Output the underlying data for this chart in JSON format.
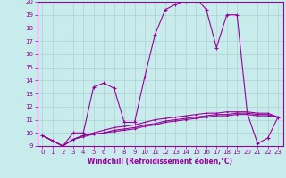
{
  "title": "",
  "xlabel": "Windchill (Refroidissement éolien,°C)",
  "background_color": "#c8ecec",
  "grid_color": "#b0d0d0",
  "line_color": "#990099",
  "x": [
    0,
    1,
    2,
    3,
    4,
    5,
    6,
    7,
    8,
    9,
    10,
    11,
    12,
    13,
    14,
    15,
    16,
    17,
    18,
    19,
    20,
    21,
    22,
    23
  ],
  "y_main": [
    9.8,
    9.4,
    9.0,
    10.0,
    10.0,
    13.5,
    13.8,
    13.4,
    10.8,
    10.8,
    14.3,
    17.5,
    19.4,
    19.8,
    20.1,
    20.3,
    19.4,
    16.5,
    19.0,
    19.0,
    11.5,
    9.2,
    9.6,
    11.2
  ],
  "y_line2": [
    9.8,
    9.4,
    9.0,
    9.5,
    9.8,
    10.0,
    10.2,
    10.4,
    10.5,
    10.6,
    10.8,
    11.0,
    11.1,
    11.2,
    11.3,
    11.4,
    11.5,
    11.5,
    11.6,
    11.6,
    11.6,
    11.5,
    11.5,
    11.2
  ],
  "y_line3": [
    9.8,
    9.4,
    9.0,
    9.5,
    9.8,
    9.9,
    10.0,
    10.2,
    10.3,
    10.4,
    10.6,
    10.7,
    10.9,
    11.0,
    11.1,
    11.2,
    11.3,
    11.4,
    11.4,
    11.5,
    11.5,
    11.4,
    11.4,
    11.2
  ],
  "y_line4": [
    9.8,
    9.4,
    9.0,
    9.5,
    9.7,
    9.9,
    10.0,
    10.1,
    10.2,
    10.3,
    10.5,
    10.6,
    10.8,
    10.9,
    11.0,
    11.1,
    11.2,
    11.3,
    11.3,
    11.4,
    11.4,
    11.3,
    11.3,
    11.2
  ],
  "ylim": [
    9,
    20
  ],
  "xlim": [
    -0.5,
    23.5
  ],
  "yticks": [
    9,
    10,
    11,
    12,
    13,
    14,
    15,
    16,
    17,
    18,
    19,
    20
  ],
  "xticks": [
    0,
    1,
    2,
    3,
    4,
    5,
    6,
    7,
    8,
    9,
    10,
    11,
    12,
    13,
    14,
    15,
    16,
    17,
    18,
    19,
    20,
    21,
    22,
    23
  ],
  "tick_fontsize": 5.0,
  "xlabel_fontsize": 5.5
}
